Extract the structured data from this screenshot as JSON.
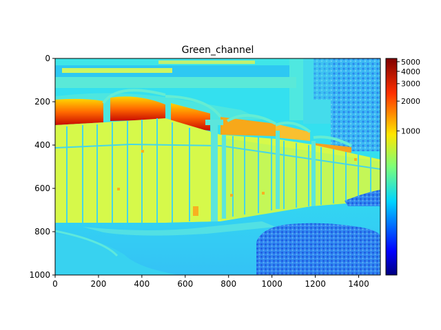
{
  "chart_data": {
    "type": "heatmap",
    "title": "Green_channel",
    "xlabel": "",
    "ylabel": "",
    "xlim": [
      0,
      1500
    ],
    "ylim": [
      1000,
      0
    ],
    "x_ticks": [
      0,
      200,
      400,
      600,
      800,
      1000,
      1200,
      1400
    ],
    "y_ticks": [
      0,
      200,
      400,
      600,
      800,
      1000
    ],
    "colormap": "jet",
    "colorbar": {
      "scale": "log",
      "ticks": [
        5000,
        4000,
        3000,
        2000,
        1000
      ],
      "range": [
        35,
        5400
      ]
    },
    "colors": {
      "sky_cyan": "#34e0ef",
      "wall_yellow": "#d6f94a",
      "glass_red": "#d82808",
      "ground_cyan": "#35c9f2",
      "shrub_blue": "#2a7cf2"
    }
  }
}
